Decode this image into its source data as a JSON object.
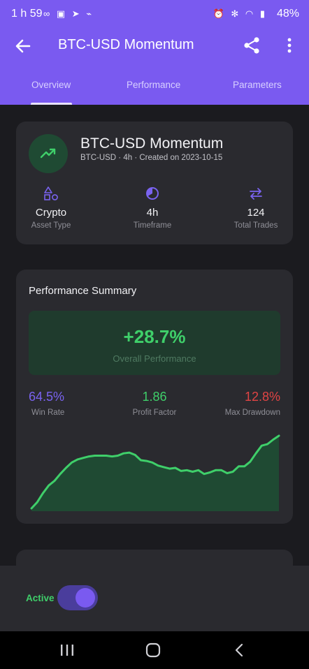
{
  "status": {
    "time": "1 h 59",
    "left_icons": "∞ ▣ ➤ ⌁",
    "right_icons": "⏰ ✻ ◠ ▮",
    "battery": "48%"
  },
  "appbar": {
    "title": "BTC-USD Momentum"
  },
  "tabs": [
    {
      "label": "Overview",
      "active": true
    },
    {
      "label": "Performance",
      "active": false
    },
    {
      "label": "Parameters",
      "active": false
    }
  ],
  "strategy": {
    "name": "BTC-USD Momentum",
    "meta": "BTC-USD · 4h · Created on 2023-10-15",
    "stats": [
      {
        "icon": "shapes-icon",
        "value": "Crypto",
        "label": "Asset Type"
      },
      {
        "icon": "timer-icon",
        "value": "4h",
        "label": "Timeframe"
      },
      {
        "icon": "swap-icon",
        "value": "124",
        "label": "Total Trades"
      }
    ]
  },
  "performance": {
    "title": "Performance Summary",
    "overall_value": "+28.7%",
    "overall_label": "Overall Performance",
    "metrics": [
      {
        "value": "64.5%",
        "label": "Win Rate"
      },
      {
        "value": "1.86",
        "label": "Profit Factor"
      },
      {
        "value": "12.8%",
        "label": "Max Drawdown"
      }
    ]
  },
  "chart_data": {
    "type": "area",
    "series": [
      {
        "values": [
          0,
          8,
          20,
          30,
          36,
          45,
          53,
          60,
          64,
          66,
          68,
          69,
          69,
          69,
          68,
          69,
          72,
          73,
          70,
          63,
          62,
          60,
          56,
          54,
          52,
          53,
          49,
          50,
          48,
          50,
          45,
          47,
          50,
          50,
          46,
          48,
          55,
          55,
          61,
          72,
          82,
          84,
          90,
          95
        ]
      }
    ],
    "color": "#3fcf6a",
    "fill": "#1f4a33"
  },
  "footer": {
    "active_label": "Active",
    "toggle_on": true
  },
  "colors": {
    "accent": "#7a5af0",
    "positive": "#3fcf6a",
    "negative": "#e04444"
  }
}
